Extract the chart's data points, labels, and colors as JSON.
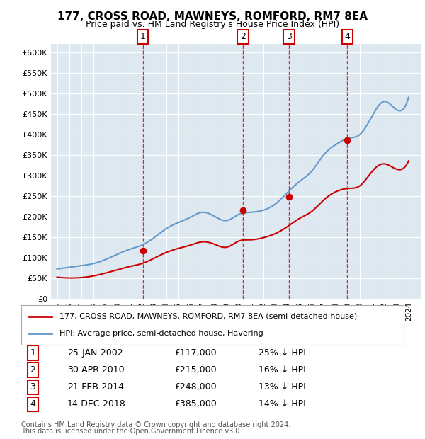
{
  "title": "177, CROSS ROAD, MAWNEYS, ROMFORD, RM7 8EA",
  "subtitle": "Price paid vs. HM Land Registry's House Price Index (HPI)",
  "legend_line1": "177, CROSS ROAD, MAWNEYS, ROMFORD, RM7 8EA (semi-detached house)",
  "legend_line2": "HPI: Average price, semi-detached house, Havering",
  "footnote1": "Contains HM Land Registry data © Crown copyright and database right 2024.",
  "footnote2": "This data is licensed under the Open Government Licence v3.0.",
  "ylabel": "",
  "ylim": [
    0,
    620000
  ],
  "yticks": [
    0,
    50000,
    100000,
    150000,
    200000,
    250000,
    300000,
    350000,
    400000,
    450000,
    500000,
    550000,
    600000
  ],
  "ytick_labels": [
    "£0",
    "£50K",
    "£100K",
    "£150K",
    "£200K",
    "£250K",
    "£300K",
    "£350K",
    "£400K",
    "£450K",
    "£500K",
    "£550K",
    "£600K"
  ],
  "background_color": "#dde8f0",
  "plot_bg_color": "#dde8f0",
  "red_color": "#cc0000",
  "blue_color": "#6699cc",
  "sale_dates": [
    2002.07,
    2010.33,
    2014.13,
    2018.95
  ],
  "sale_prices": [
    117000,
    215000,
    248000,
    385000
  ],
  "sale_labels": [
    "1",
    "2",
    "3",
    "4"
  ],
  "table_rows": [
    [
      "1",
      "25-JAN-2002",
      "£117,000",
      "25% ↓ HPI"
    ],
    [
      "2",
      "30-APR-2010",
      "£215,000",
      "16% ↓ HPI"
    ],
    [
      "3",
      "21-FEB-2014",
      "£248,000",
      "13% ↓ HPI"
    ],
    [
      "4",
      "14-DEC-2018",
      "£385,000",
      "14% ↓ HPI"
    ]
  ],
  "hpi_years": [
    1995,
    1996,
    1997,
    1998,
    1999,
    2000,
    2001,
    2002,
    2003,
    2004,
    2005,
    2006,
    2007,
    2008,
    2009,
    2010,
    2011,
    2012,
    2013,
    2014,
    2015,
    2016,
    2017,
    2018,
    2019,
    2020,
    2021,
    2022,
    2023,
    2024
  ],
  "hpi_values": [
    72000,
    76000,
    80000,
    85000,
    95000,
    108000,
    120000,
    130000,
    148000,
    170000,
    185000,
    198000,
    210000,
    200000,
    190000,
    205000,
    210000,
    215000,
    230000,
    258000,
    285000,
    310000,
    350000,
    375000,
    390000,
    400000,
    445000,
    480000,
    460000,
    490000
  ],
  "red_line_years": [
    1995,
    1996,
    1997,
    1998,
    1999,
    2000,
    2001,
    2002,
    2003,
    2004,
    2005,
    2006,
    2007,
    2008,
    2009,
    2010,
    2011,
    2012,
    2013,
    2014,
    2015,
    2016,
    2017,
    2018,
    2019,
    2020,
    2021,
    2022,
    2023,
    2024
  ],
  "red_line_values": [
    52000,
    50000,
    51000,
    55000,
    62000,
    70000,
    78000,
    85000,
    98000,
    112000,
    122000,
    130000,
    138000,
    132000,
    125000,
    140000,
    143000,
    148000,
    158000,
    175000,
    195000,
    212000,
    240000,
    260000,
    268000,
    275000,
    310000,
    328000,
    315000,
    335000
  ],
  "xlim": [
    1994.5,
    2025
  ],
  "xtick_years": [
    1995,
    1996,
    1997,
    1998,
    1999,
    2000,
    2001,
    2002,
    2003,
    2004,
    2005,
    2006,
    2007,
    2008,
    2009,
    2010,
    2011,
    2012,
    2013,
    2014,
    2015,
    2016,
    2017,
    2018,
    2019,
    2020,
    2021,
    2022,
    2023,
    2024
  ]
}
